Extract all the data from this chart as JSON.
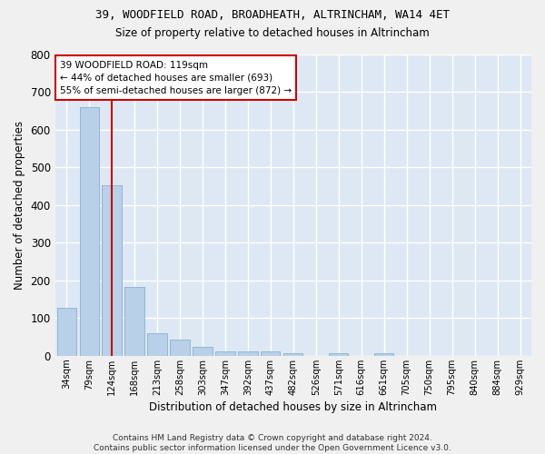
{
  "title": "39, WOODFIELD ROAD, BROADHEATH, ALTRINCHAM, WA14 4ET",
  "subtitle": "Size of property relative to detached houses in Altrincham",
  "xlabel": "Distribution of detached houses by size in Altrincham",
  "ylabel": "Number of detached properties",
  "background_color": "#dde8f4",
  "bar_color": "#b8d0e8",
  "bar_edge_color": "#8ab0d0",
  "grid_color": "#ffffff",
  "fig_background": "#f0f0f0",
  "annotation_line_color": "#cc0000",
  "annotation_box_edge_color": "#cc0000",
  "annotation_text_line1": "39 WOODFIELD ROAD: 119sqm",
  "annotation_text_line2": "← 44% of detached houses are smaller (693)",
  "annotation_text_line3": "55% of semi-detached houses are larger (872) →",
  "categories": [
    "34sqm",
    "79sqm",
    "124sqm",
    "168sqm",
    "213sqm",
    "258sqm",
    "303sqm",
    "347sqm",
    "392sqm",
    "437sqm",
    "482sqm",
    "526sqm",
    "571sqm",
    "616sqm",
    "661sqm",
    "705sqm",
    "750sqm",
    "795sqm",
    "840sqm",
    "884sqm",
    "929sqm"
  ],
  "values": [
    128,
    660,
    452,
    183,
    60,
    43,
    25,
    13,
    13,
    11,
    8,
    0,
    8,
    0,
    8,
    0,
    0,
    0,
    0,
    0,
    0
  ],
  "ylim": [
    0,
    800
  ],
  "yticks": [
    0,
    100,
    200,
    300,
    400,
    500,
    600,
    700,
    800
  ],
  "vline_x": 2.0,
  "footer": "Contains HM Land Registry data © Crown copyright and database right 2024.\nContains public sector information licensed under the Open Government Licence v3.0."
}
